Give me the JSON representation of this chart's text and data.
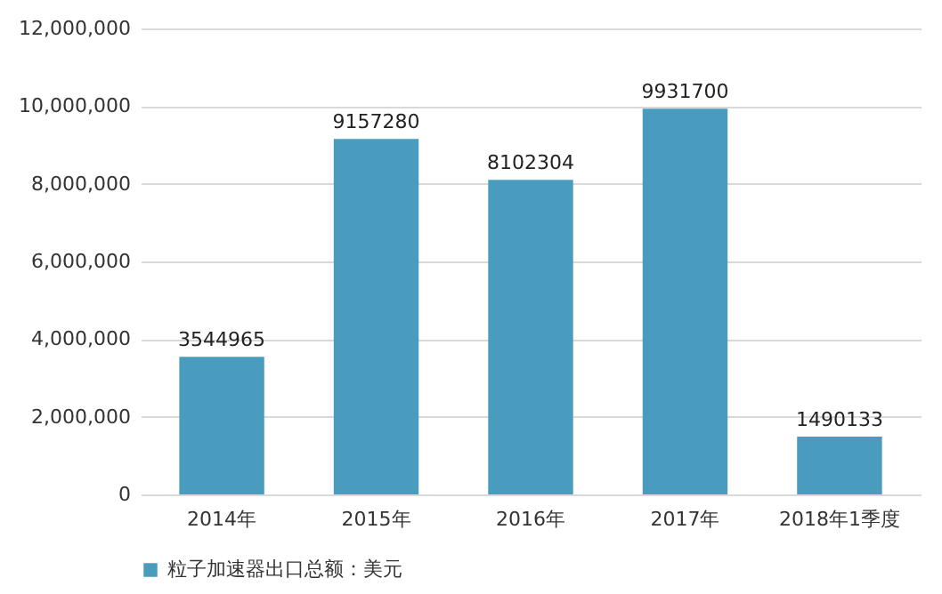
{
  "chart_data": {
    "type": "bar",
    "categories": [
      "2014年",
      "2015年",
      "2016年",
      "2017年",
      "2018年1季度"
    ],
    "series": [
      {
        "name": "粒子加速器出口总额：美元",
        "color": "#4a9cbf",
        "values": [
          3544965,
          9157280,
          8102304,
          9931700,
          1490133
        ]
      }
    ],
    "ylim": [
      0,
      12000000
    ],
    "yticks": [
      {
        "value": 0,
        "label": "0"
      },
      {
        "value": 2000000,
        "label": "2,000,000"
      },
      {
        "value": 4000000,
        "label": "4,000,000"
      },
      {
        "value": 6000000,
        "label": "6,000,000"
      },
      {
        "value": 8000000,
        "label": "8,000,000"
      },
      {
        "value": 10000000,
        "label": "10,000,000"
      },
      {
        "value": 12000000,
        "label": "12,000,000"
      }
    ],
    "grid": "y",
    "legend": "bottom",
    "data_labels": true
  }
}
